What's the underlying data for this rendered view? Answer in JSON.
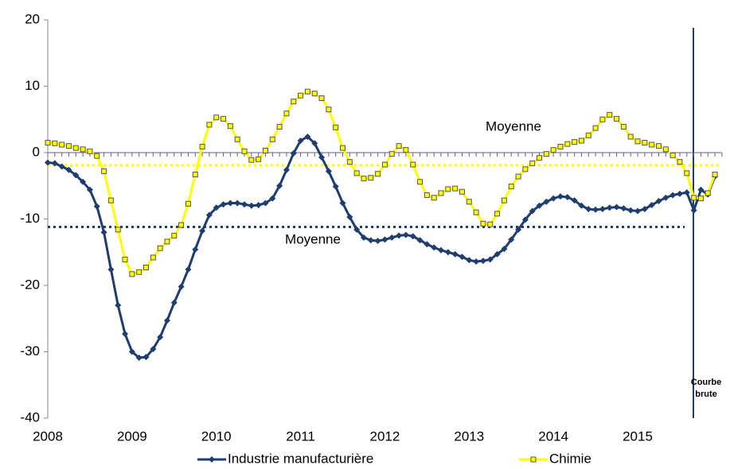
{
  "chart_data": {
    "type": "line",
    "categories": [
      "2008",
      null,
      null,
      null,
      null,
      null,
      null,
      null,
      null,
      null,
      null,
      null,
      "2009",
      null,
      null,
      null,
      null,
      null,
      null,
      null,
      null,
      null,
      null,
      null,
      "2010",
      null,
      null,
      null,
      null,
      null,
      null,
      null,
      null,
      null,
      null,
      null,
      "2011",
      null,
      null,
      null,
      null,
      null,
      null,
      null,
      null,
      null,
      null,
      null,
      "2012",
      null,
      null,
      null,
      null,
      null,
      null,
      null,
      null,
      null,
      null,
      null,
      "2013",
      null,
      null,
      null,
      null,
      null,
      null,
      null,
      null,
      null,
      null,
      null,
      "2014",
      null,
      null,
      null,
      null,
      null,
      null,
      null,
      null,
      null,
      null,
      null,
      "2015",
      null,
      null,
      null,
      null,
      null,
      null,
      null,
      null,
      null,
      null,
      null
    ],
    "series": [
      {
        "name": "Industrie manufacturière",
        "color": "#1f3d6e",
        "marker": "diamond",
        "values": [
          -1.5,
          -1.6,
          -2.1,
          -2.6,
          -3.4,
          -4.4,
          -5.6,
          -8.1,
          -12.0,
          -17.6,
          -23.0,
          -27.3,
          -30.0,
          -30.9,
          -30.8,
          -29.6,
          -27.8,
          -25.3,
          -22.6,
          -20.2,
          -17.6,
          -14.6,
          -11.8,
          -9.4,
          -8.3,
          -7.8,
          -7.6,
          -7.6,
          -7.8,
          -8.0,
          -7.9,
          -7.6,
          -6.9,
          -5.0,
          -2.6,
          -0.1,
          1.8,
          2.4,
          1.4,
          -0.7,
          -2.8,
          -5.1,
          -7.6,
          -9.7,
          -11.6,
          -12.8,
          -13.2,
          -13.3,
          -13.1,
          -12.8,
          -12.5,
          -12.4,
          -12.6,
          -13.2,
          -13.8,
          -14.3,
          -14.7,
          -15.0,
          -15.3,
          -15.7,
          -16.2,
          -16.4,
          -16.3,
          -16.1,
          -15.3,
          -14.5,
          -13.1,
          -11.6,
          -10.1,
          -8.8,
          -8.0,
          -7.4,
          -6.9,
          -6.6,
          -6.7,
          -7.2,
          -8.0,
          -8.5,
          -8.6,
          -8.5,
          -8.3,
          -8.2,
          -8.4,
          -8.7,
          -8.8,
          -8.5,
          -7.9,
          -7.3,
          -6.8,
          -6.4,
          -6.2,
          -6.0,
          -8.7,
          -5.6,
          -6.3,
          -3.6
        ]
      },
      {
        "name": "Chimie",
        "color": "#ffff00",
        "marker": "square",
        "values": [
          1.5,
          1.4,
          1.2,
          1.0,
          0.7,
          0.5,
          0.2,
          -0.5,
          -2.8,
          -7.2,
          -11.6,
          -16.1,
          -18.3,
          -18.0,
          -17.3,
          -15.8,
          -14.4,
          -13.4,
          -12.5,
          -10.9,
          -7.7,
          -3.3,
          0.9,
          4.2,
          5.3,
          5.1,
          4.0,
          2.0,
          0.2,
          -1.1,
          -1.0,
          0.3,
          2.0,
          3.9,
          5.9,
          7.7,
          8.6,
          9.2,
          8.9,
          8.2,
          6.5,
          3.8,
          0.7,
          -1.4,
          -3.1,
          -3.9,
          -3.8,
          -3.2,
          -1.8,
          -0.2,
          1.0,
          0.4,
          -1.8,
          -4.4,
          -6.4,
          -6.8,
          -6.1,
          -5.5,
          -5.4,
          -5.9,
          -7.4,
          -9.0,
          -10.7,
          -10.8,
          -9.2,
          -7.2,
          -5.1,
          -3.6,
          -2.5,
          -1.6,
          -0.8,
          -0.2,
          0.4,
          0.9,
          1.3,
          1.6,
          1.8,
          2.6,
          3.7,
          5.0,
          5.7,
          5.1,
          3.9,
          2.4,
          1.7,
          1.5,
          1.2,
          1.0,
          0.5,
          -0.4,
          -1.4,
          -3.1,
          -6.8,
          -6.9,
          -6.1,
          -3.3
        ]
      }
    ],
    "mean_lines": [
      {
        "label": "Moyenne",
        "value": -1.9,
        "color": "#ffff00"
      },
      {
        "label": "Moyenne",
        "value": -11.2,
        "color": "#1f3d6e"
      }
    ],
    "annotation": "Courbe brute",
    "ylim": [
      -40,
      20
    ],
    "yticks": [
      -40,
      -30,
      -20,
      -10,
      0,
      10,
      20
    ],
    "legend": "bottom"
  }
}
